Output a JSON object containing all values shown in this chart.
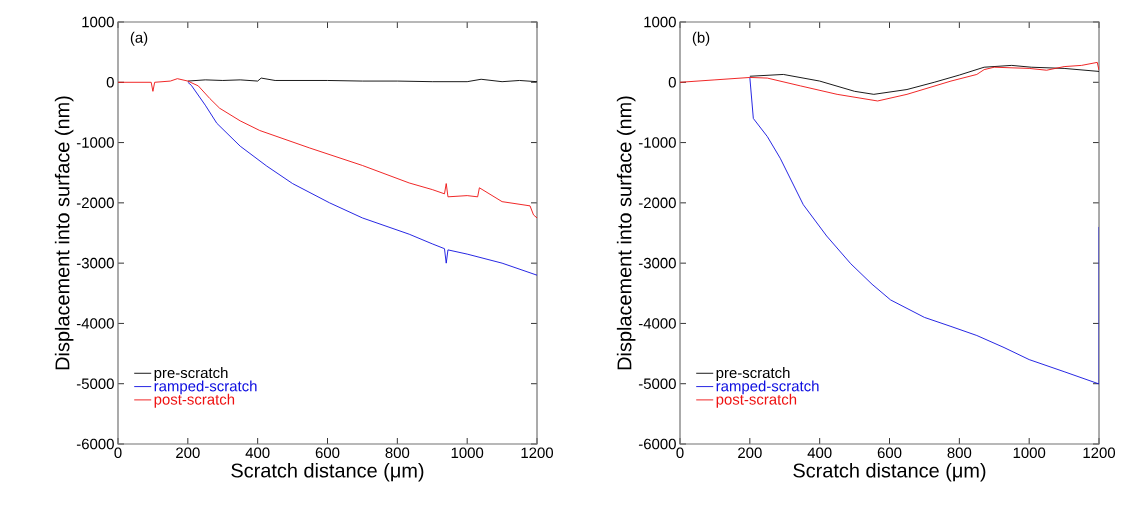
{
  "chart_data": [
    {
      "type": "line",
      "annotations": [
        "(a)"
      ],
      "xlabel": "Scratch distance (μm)",
      "ylabel": "Displacement into surface (nm)",
      "xlim": [
        0,
        1200
      ],
      "ylim": [
        -6000,
        1000
      ],
      "xticks": [
        0,
        200,
        400,
        600,
        800,
        1000,
        1200
      ],
      "yticks": [
        -6000,
        -5000,
        -4000,
        -3000,
        -2000,
        -1000,
        0,
        1000
      ],
      "grid": false,
      "legend": "bottom left",
      "marker": "none",
      "line_style": "solid",
      "series": [
        {
          "name": "pre-scratch",
          "color": "#000000",
          "x": [
            200,
            250,
            300,
            350,
            400,
            410,
            450,
            500,
            600,
            700,
            800,
            900,
            1000,
            1040,
            1100,
            1150,
            1200
          ],
          "values": [
            20,
            40,
            30,
            40,
            20,
            70,
            30,
            30,
            30,
            20,
            20,
            10,
            10,
            50,
            10,
            30,
            10
          ]
        },
        {
          "name": "ramped-scratch",
          "color": "#1010e0",
          "x": [
            200,
            210,
            250,
            283,
            350,
            426,
            500,
            606,
            700,
            834,
            900,
            935,
            940,
            945,
            1000,
            1100,
            1200
          ],
          "values": [
            0,
            -50,
            -380,
            -680,
            -1060,
            -1390,
            -1680,
            -2000,
            -2250,
            -2520,
            -2680,
            -2760,
            -3000,
            -2780,
            -2850,
            -3000,
            -3200
          ]
        },
        {
          "name": "post-scratch",
          "color": "#ee1010",
          "x": [
            0,
            50,
            95,
            100,
            105,
            150,
            170,
            200,
            230,
            263,
            291,
            350,
            406,
            549,
            700,
            834,
            900,
            935,
            940,
            945,
            1000,
            1030,
            1035,
            1100,
            1180,
            1190,
            1200
          ],
          "values": [
            0,
            0,
            0,
            -150,
            0,
            20,
            60,
            20,
            -60,
            -270,
            -430,
            -640,
            -800,
            -1090,
            -1380,
            -1670,
            -1780,
            -1850,
            -1680,
            -1900,
            -1880,
            -1900,
            -1750,
            -1980,
            -2050,
            -2200,
            -2250
          ]
        }
      ]
    },
    {
      "type": "line",
      "annotations": [
        "(b)"
      ],
      "xlabel": "Scratch distance (μm)",
      "ylabel": "Displacement into surface (nm)",
      "xlim": [
        0,
        1200
      ],
      "ylim": [
        -6000,
        1000
      ],
      "xticks": [
        0,
        200,
        400,
        600,
        800,
        1000,
        1200
      ],
      "yticks": [
        -6000,
        -5000,
        -4000,
        -3000,
        -2000,
        -1000,
        0,
        1000
      ],
      "grid": false,
      "legend": "bottom left",
      "marker": "none",
      "line_style": "solid",
      "series": [
        {
          "name": "pre-scratch",
          "color": "#000000",
          "x": [
            200,
            296,
            400,
            500,
            555,
            650,
            728,
            800,
            871,
            950,
            1006,
            1100,
            1200
          ],
          "values": [
            100,
            130,
            20,
            -150,
            -200,
            -120,
            0,
            120,
            250,
            280,
            250,
            230,
            180
          ]
        },
        {
          "name": "ramped-scratch",
          "color": "#1010e0",
          "x": [
            200,
            210,
            250,
            287,
            353,
            420,
            489,
            550,
            603,
            700,
            776,
            850,
            928,
            1000,
            1100,
            1198,
            1200,
            1200
          ],
          "values": [
            80,
            -600,
            -900,
            -1260,
            -2030,
            -2550,
            -3010,
            -3350,
            -3610,
            -3900,
            -4050,
            -4200,
            -4400,
            -4600,
            -4800,
            -5000,
            -5000,
            -2400
          ]
        },
        {
          "name": "post-scratch",
          "color": "#ee1010",
          "x": [
            0,
            100,
            200,
            250,
            345,
            450,
            566,
            650,
            776,
            850,
            871,
            900,
            1000,
            1050,
            1100,
            1150,
            1195,
            1200
          ],
          "values": [
            0,
            40,
            80,
            70,
            -60,
            -200,
            -310,
            -200,
            20,
            130,
            210,
            250,
            230,
            200,
            260,
            280,
            330,
            200
          ]
        }
      ]
    }
  ]
}
